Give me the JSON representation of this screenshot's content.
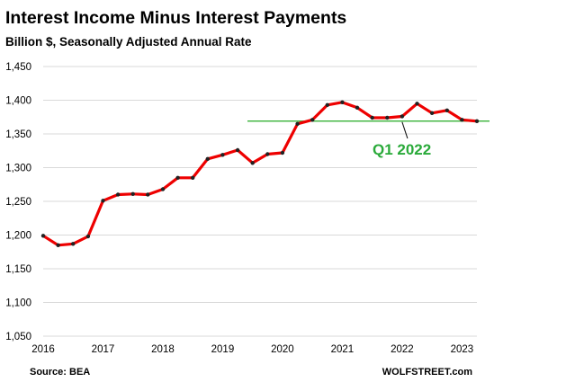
{
  "chart_data": {
    "type": "line",
    "title": "Interest Income Minus Interest Payments",
    "subtitle": "Billion $, Seasonally Adjusted Annual Rate",
    "xlabel": "",
    "ylabel": "",
    "ylim": [
      1050,
      1450
    ],
    "yticks": [
      1050,
      1100,
      1150,
      1200,
      1250,
      1300,
      1350,
      1400,
      1450
    ],
    "yticks_labels": [
      "1,050",
      "1,100",
      "1,150",
      "1,200",
      "1,250",
      "1,300",
      "1,350",
      "1,400",
      "1,450"
    ],
    "xlim": [
      2016,
      2023.25
    ],
    "xticks": [
      2016,
      2017,
      2018,
      2019,
      2020,
      2021,
      2022,
      2023
    ],
    "xticks_labels": [
      "2016",
      "2017",
      "2018",
      "2019",
      "2020",
      "2021",
      "2022",
      "2023"
    ],
    "grid": "horizontal",
    "line_color": "#ee0000",
    "marker_color": "#222222",
    "reference_line_color": "#22aa22",
    "annotation_color": "#2aaa3a",
    "series": [
      {
        "x": [
          "2016 Q1",
          "2016 Q2",
          "2016 Q3",
          "2016 Q4",
          "2017 Q1",
          "2017 Q2",
          "2017 Q3",
          "2017 Q4",
          "2018 Q1",
          "2018 Q2",
          "2018 Q3",
          "2018 Q4",
          "2019 Q1",
          "2019 Q2",
          "2019 Q3",
          "2019 Q4",
          "2020 Q1",
          "2020 Q2",
          "2020 Q3",
          "2020 Q4",
          "2021 Q1",
          "2021 Q2",
          "2021 Q3",
          "2021 Q4",
          "2022 Q1",
          "2022 Q2",
          "2022 Q3",
          "2022 Q4",
          "2023 Q1",
          "2023 Q2"
        ],
        "values": [
          1199,
          1185,
          1187,
          1198,
          1251,
          1260,
          1261,
          1260,
          1268,
          1285,
          1285,
          1313,
          1319,
          1326,
          1307,
          1320,
          1322,
          1365,
          1371,
          1393,
          1397,
          1389,
          1374,
          1374,
          1376,
          1395,
          1381,
          1385,
          1371,
          1369
        ]
      }
    ],
    "reference_line": {
      "value": 1369
    },
    "annotation": {
      "text": "Q1 2022",
      "x": "2022 Q1"
    }
  },
  "footer": {
    "source": "Source: BEA",
    "site": "WOLFSTREET.com"
  }
}
